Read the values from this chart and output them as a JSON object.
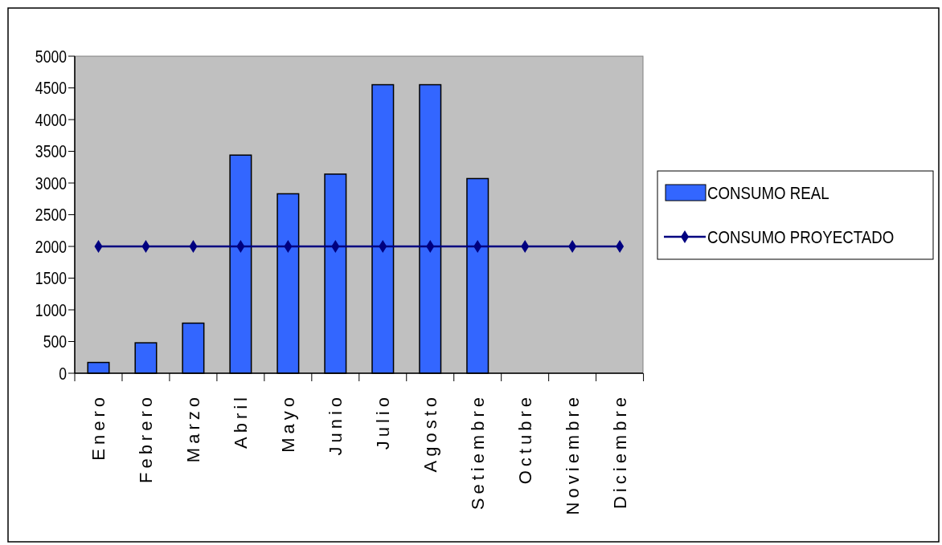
{
  "chart_data": {
    "type": "bar",
    "categories": [
      "Enero",
      "Febrero",
      "Marzo",
      "Abril",
      "Mayo",
      "Junio",
      "Julio",
      "Agosto",
      "Setiembre",
      "Octubre",
      "Noviembre",
      "Diciembre"
    ],
    "series": [
      {
        "name": "CONSUMO REAL",
        "color": "#3366ff",
        "values": [
          170,
          480,
          790,
          3440,
          2830,
          3140,
          4550,
          4550,
          3070,
          null,
          null,
          null
        ]
      },
      {
        "name": "CONSUMO PROYECTADO",
        "type": "line",
        "color": "#000080",
        "marker": "diamond",
        "values": [
          2000,
          2000,
          2000,
          2000,
          2000,
          2000,
          2000,
          2000,
          2000,
          2000,
          2000,
          2000
        ]
      }
    ],
    "ylim": [
      0,
      5000
    ],
    "yticks": [
      0,
      500,
      1000,
      1500,
      2000,
      2500,
      3000,
      3500,
      4000,
      4500,
      5000
    ],
    "grid": false,
    "legend": "right"
  }
}
